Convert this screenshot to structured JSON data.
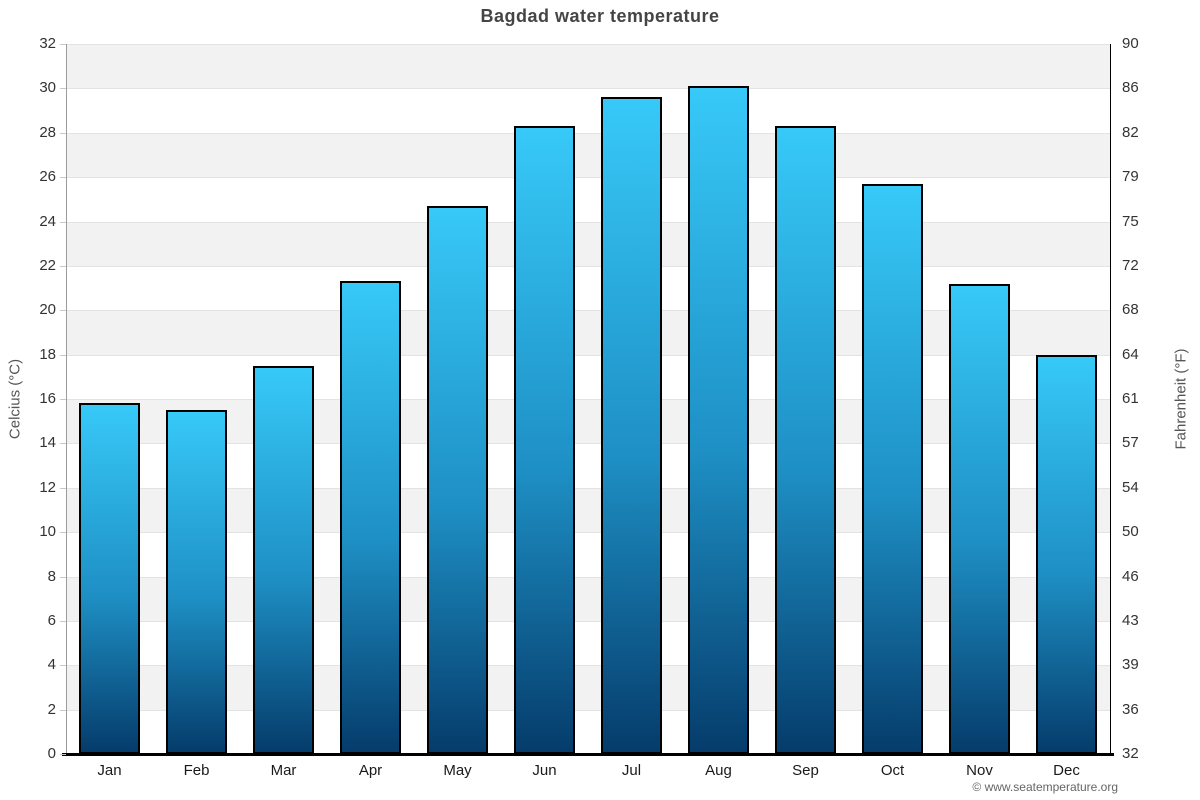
{
  "page": {
    "title": "Bagdad water temperature",
    "footer": "© www.seatemperature.org"
  },
  "chart_data": {
    "type": "bar",
    "title": "Bagdad water temperature",
    "categories": [
      "Jan",
      "Feb",
      "Mar",
      "Apr",
      "May",
      "Jun",
      "Jul",
      "Aug",
      "Sep",
      "Oct",
      "Nov",
      "Dec"
    ],
    "values": [
      15.8,
      15.5,
      17.5,
      21.3,
      24.7,
      28.3,
      29.6,
      30.1,
      28.3,
      25.7,
      21.2,
      18.0
    ],
    "unit": "°C",
    "ylabel_left": "Celcius (°C)",
    "ylabel_right": "Fahrenheit (°F)",
    "ylim": [
      0,
      32
    ],
    "celsius_ticks": [
      0,
      2,
      4,
      6,
      8,
      10,
      12,
      14,
      16,
      18,
      20,
      22,
      24,
      26,
      28,
      30,
      32
    ],
    "fahrenheit_tick_labels": [
      "32",
      "36",
      "39",
      "43",
      "46",
      "50",
      "54",
      "57",
      "61",
      "64",
      "68",
      "72",
      "75",
      "79",
      "82",
      "86",
      "90"
    ],
    "grid": true,
    "legend": "none",
    "band_colors": [
      "#f2f2f2",
      "#ffffff"
    ],
    "bar_gradient": {
      "top": "#37C9F8",
      "mid": "#1E8FC4",
      "bottom": "#053C6B"
    },
    "bar_border_color": "#000000",
    "footer": "© www.seatemperature.org"
  }
}
